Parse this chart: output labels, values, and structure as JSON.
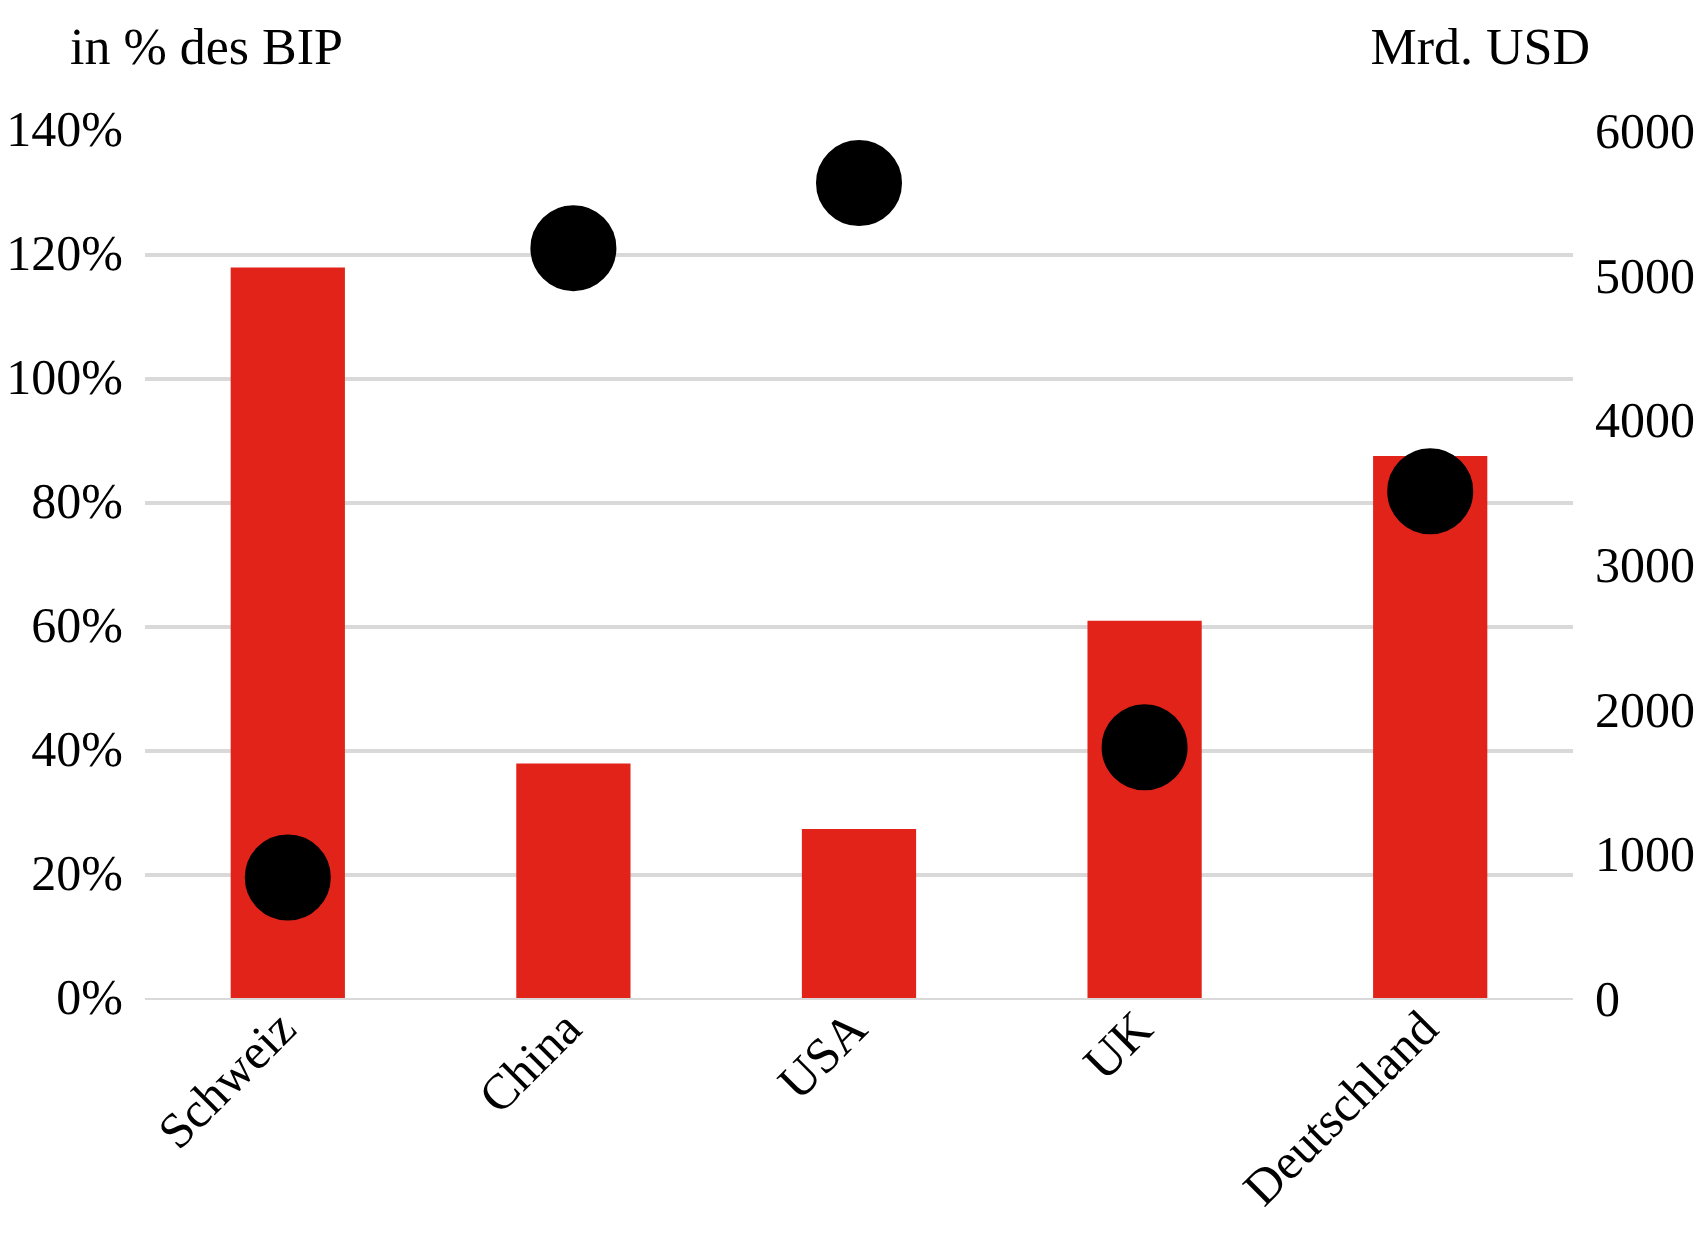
{
  "chart_data": {
    "type": "bar",
    "ylabel": "in % des BIP",
    "y2label": "Mrd. USD",
    "categories": [
      "Schweiz",
      "China",
      "USA",
      "UK",
      "Deutschland"
    ],
    "series": [
      {
        "color": "#e2231a",
        "values": [
          118,
          38,
          27.4,
          61,
          87.6
        ]
      },
      {
        "type": "scatter",
        "axis": "y2",
        "color": "#000000",
        "marker": "circle",
        "values": [
          840,
          5190,
          5640,
          1740,
          3510
        ]
      }
    ],
    "ylim": [
      0,
      140
    ],
    "yticks": [
      {
        "value": 0,
        "label": "0%"
      },
      {
        "value": 20,
        "label": "20%"
      },
      {
        "value": 40,
        "label": "40%"
      },
      {
        "value": 60,
        "label": "60%"
      },
      {
        "value": 80,
        "label": "80%"
      },
      {
        "value": 100,
        "label": "100%"
      },
      {
        "value": 120,
        "label": "120%"
      },
      {
        "value": 140,
        "label": "140%"
      }
    ],
    "y2lim": [
      0,
      6000
    ],
    "y2ticks": [
      0,
      1000,
      2000,
      3000,
      4000,
      5000,
      6000
    ],
    "grid": "y"
  }
}
